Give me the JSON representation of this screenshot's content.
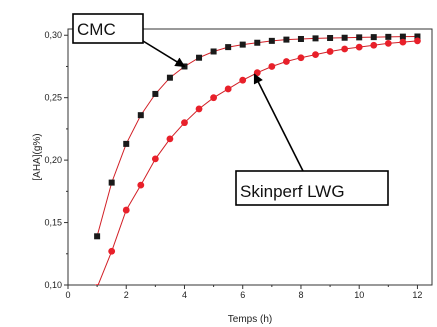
{
  "chart_data": {
    "type": "scatter",
    "xlabel": "Temps (h)",
    "ylabel": "[AHA](g%)",
    "xlim": [
      0,
      12.5
    ],
    "ylim": [
      0.1,
      0.305
    ],
    "x_ticks": [
      0,
      2,
      4,
      6,
      8,
      10,
      12
    ],
    "x_tick_labels": [
      "0",
      "2",
      "4",
      "6",
      "8",
      "10",
      "12"
    ],
    "y_ticks": [
      0.1,
      0.15,
      0.2,
      0.25,
      0.3
    ],
    "y_tick_labels": [
      "0,10",
      "0,15",
      "0,20",
      "0,25",
      "0,30"
    ],
    "grid": false,
    "series": [
      {
        "name": "CMC",
        "marker": "square",
        "marker_color": "#1a1a1a",
        "line_color": "#d21f26",
        "x": [
          1.0,
          1.5,
          2.0,
          2.5,
          3.0,
          3.5,
          4.0,
          4.5,
          5.0,
          5.5,
          6.0,
          6.5,
          7.0,
          7.5,
          8.0,
          8.5,
          9.0,
          9.5,
          10.0,
          10.5,
          11.0,
          11.5,
          12.0
        ],
        "y": [
          0.139,
          0.182,
          0.213,
          0.236,
          0.253,
          0.266,
          0.275,
          0.282,
          0.287,
          0.2905,
          0.2925,
          0.294,
          0.2955,
          0.2965,
          0.297,
          0.2975,
          0.2978,
          0.298,
          0.2983,
          0.2985,
          0.2987,
          0.2989,
          0.299
        ]
      },
      {
        "name": "Skinperf LWG",
        "marker": "circle",
        "marker_color": "#e8202a",
        "line_color": "#d21f26",
        "x": [
          1.0,
          1.5,
          2.0,
          2.5,
          3.0,
          3.5,
          4.0,
          4.5,
          5.0,
          5.5,
          6.0,
          6.5,
          7.0,
          7.5,
          8.0,
          8.5,
          9.0,
          9.5,
          10.0,
          10.5,
          11.0,
          11.5,
          12.0
        ],
        "y": [
          0.098,
          0.127,
          0.16,
          0.18,
          0.201,
          0.217,
          0.23,
          0.241,
          0.25,
          0.257,
          0.264,
          0.27,
          0.275,
          0.279,
          0.282,
          0.2845,
          0.287,
          0.289,
          0.2905,
          0.292,
          0.2935,
          0.2945,
          0.2955
        ]
      }
    ],
    "annotations": [
      {
        "text": "CMC",
        "series": "CMC",
        "arrow_to_x": 4.0
      },
      {
        "text": "Skinperf LWG",
        "series": "Skinperf LWG",
        "arrow_to_x": 6.4
      }
    ]
  }
}
